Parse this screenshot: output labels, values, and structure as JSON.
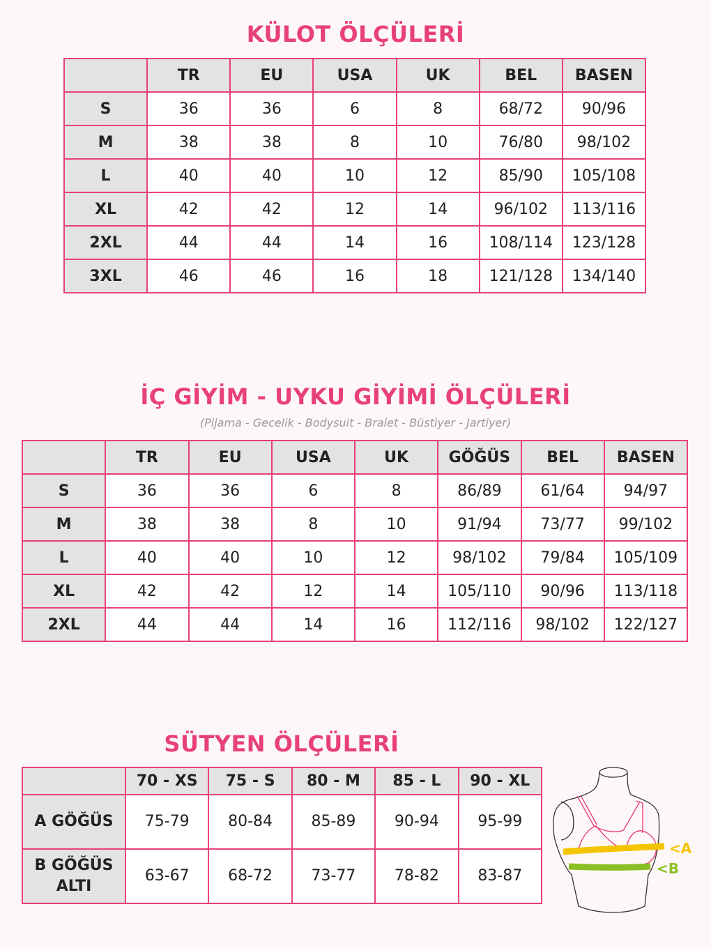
{
  "kulot": {
    "title": "KÜLOT ÖLÇÜLERİ",
    "headers": [
      "",
      "TR",
      "EU",
      "USA",
      "UK",
      "BEL",
      "BASEN"
    ],
    "rows": [
      [
        "S",
        "36",
        "36",
        "6",
        "8",
        "68/72",
        "90/96"
      ],
      [
        "M",
        "38",
        "38",
        "8",
        "10",
        "76/80",
        "98/102"
      ],
      [
        "L",
        "40",
        "40",
        "10",
        "12",
        "85/90",
        "105/108"
      ],
      [
        "XL",
        "42",
        "42",
        "12",
        "14",
        "96/102",
        "113/116"
      ],
      [
        "2XL",
        "44",
        "44",
        "14",
        "16",
        "108/114",
        "123/128"
      ],
      [
        "3XL",
        "46",
        "46",
        "16",
        "18",
        "121/128",
        "134/140"
      ]
    ]
  },
  "ic_giyim": {
    "title": "İÇ GİYİM - UYKU GİYİMİ ÖLÇÜLERİ",
    "subtitle": "(Pijama - Gecelik - Bodysuit - Bralet - Büstiyer - Jartiyer)",
    "headers": [
      "",
      "TR",
      "EU",
      "USA",
      "UK",
      "GÖĞÜS",
      "BEL",
      "BASEN"
    ],
    "rows": [
      [
        "S",
        "36",
        "36",
        "6",
        "8",
        "86/89",
        "61/64",
        "94/97"
      ],
      [
        "M",
        "38",
        "38",
        "8",
        "10",
        "91/94",
        "73/77",
        "99/102"
      ],
      [
        "L",
        "40",
        "40",
        "10",
        "12",
        "98/102",
        "79/84",
        "105/109"
      ],
      [
        "XL",
        "42",
        "42",
        "12",
        "14",
        "105/110",
        "90/96",
        "113/118"
      ],
      [
        "2XL",
        "44",
        "44",
        "14",
        "16",
        "112/116",
        "98/102",
        "122/127"
      ]
    ]
  },
  "sutyen": {
    "title": "SÜTYEN ÖLÇÜLERİ",
    "headers": [
      "",
      "70 - XS",
      "75 - S",
      "80 - M",
      "85 - L",
      "90 - XL"
    ],
    "rows": [
      [
        "A GÖĞÜS",
        "75-79",
        "80-84",
        "85-89",
        "90-94",
        "95-99"
      ],
      [
        "B GÖĞÜS ALTI",
        "63-67",
        "68-72",
        "73-77",
        "78-82",
        "83-87"
      ]
    ],
    "diagram": {
      "label_a": "<A",
      "label_b": "<B",
      "color_a": "#f5c400",
      "color_b": "#8cbf26"
    }
  },
  "colors": {
    "accent": "#e8407a",
    "header_bg": "#e3e3e3",
    "background": "#fdf8f7"
  }
}
